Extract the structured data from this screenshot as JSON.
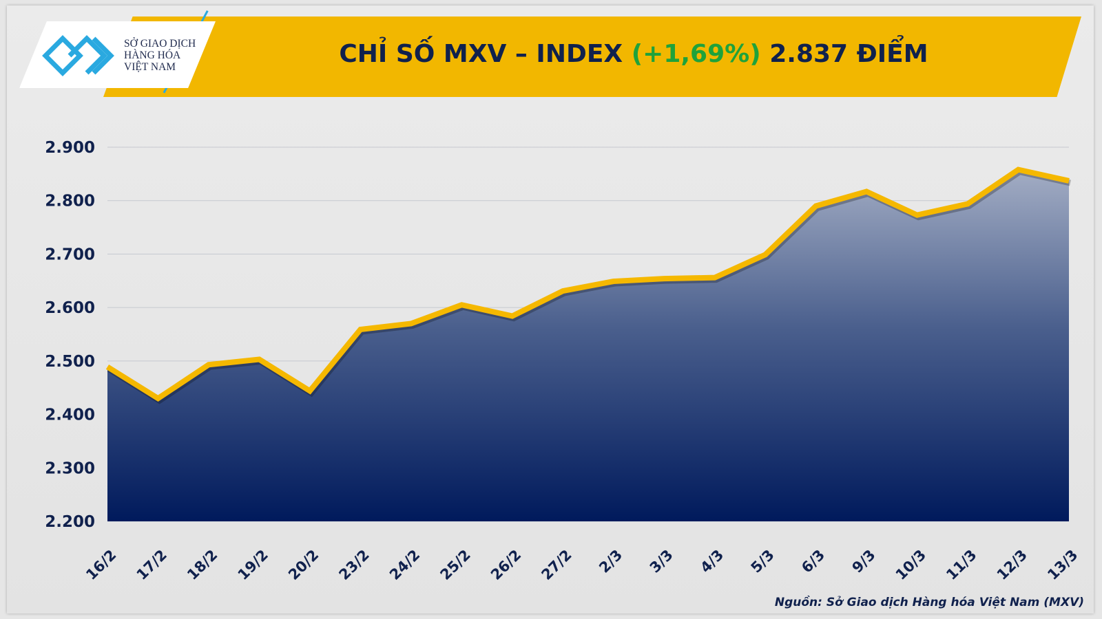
{
  "header": {
    "logo_text": [
      "SỞ GIAO DỊCH",
      "HÀNG HÓA",
      "VIỆT NAM"
    ],
    "title_prefix": "CHỈ SỐ MXV – INDEX ",
    "title_change": "(+1,69%)",
    "title_suffix": " 2.837 ĐIỂM"
  },
  "source": "Nguồn: Sở Giao dịch Hàng hóa Việt Nam (MXV)",
  "colors": {
    "line": "#f5b800",
    "area_top": "#a3adc4",
    "area_bottom": "#001a5c",
    "positive": "#1fa23b",
    "text": "#10214d"
  },
  "chart_data": {
    "type": "area",
    "categories": [
      "16/2",
      "17/2",
      "18/2",
      "19/2",
      "20/2",
      "23/2",
      "24/2",
      "25/2",
      "26/2",
      "27/2",
      "2/3",
      "3/3",
      "4/3",
      "5/3",
      "6/3",
      "9/3",
      "10/3",
      "11/3",
      "12/3",
      "13/3"
    ],
    "values": [
      2489,
      2430,
      2493,
      2503,
      2444,
      2559,
      2570,
      2605,
      2584,
      2631,
      2649,
      2654,
      2656,
      2699,
      2790,
      2817,
      2773,
      2794,
      2858,
      2837
    ],
    "yticks": [
      "2.200",
      "2.300",
      "2.400",
      "2.500",
      "2.600",
      "2.700",
      "2.800",
      "2.900"
    ],
    "ylim": [
      2200,
      2900
    ],
    "grid": true,
    "xlabel": "",
    "ylabel": ""
  }
}
